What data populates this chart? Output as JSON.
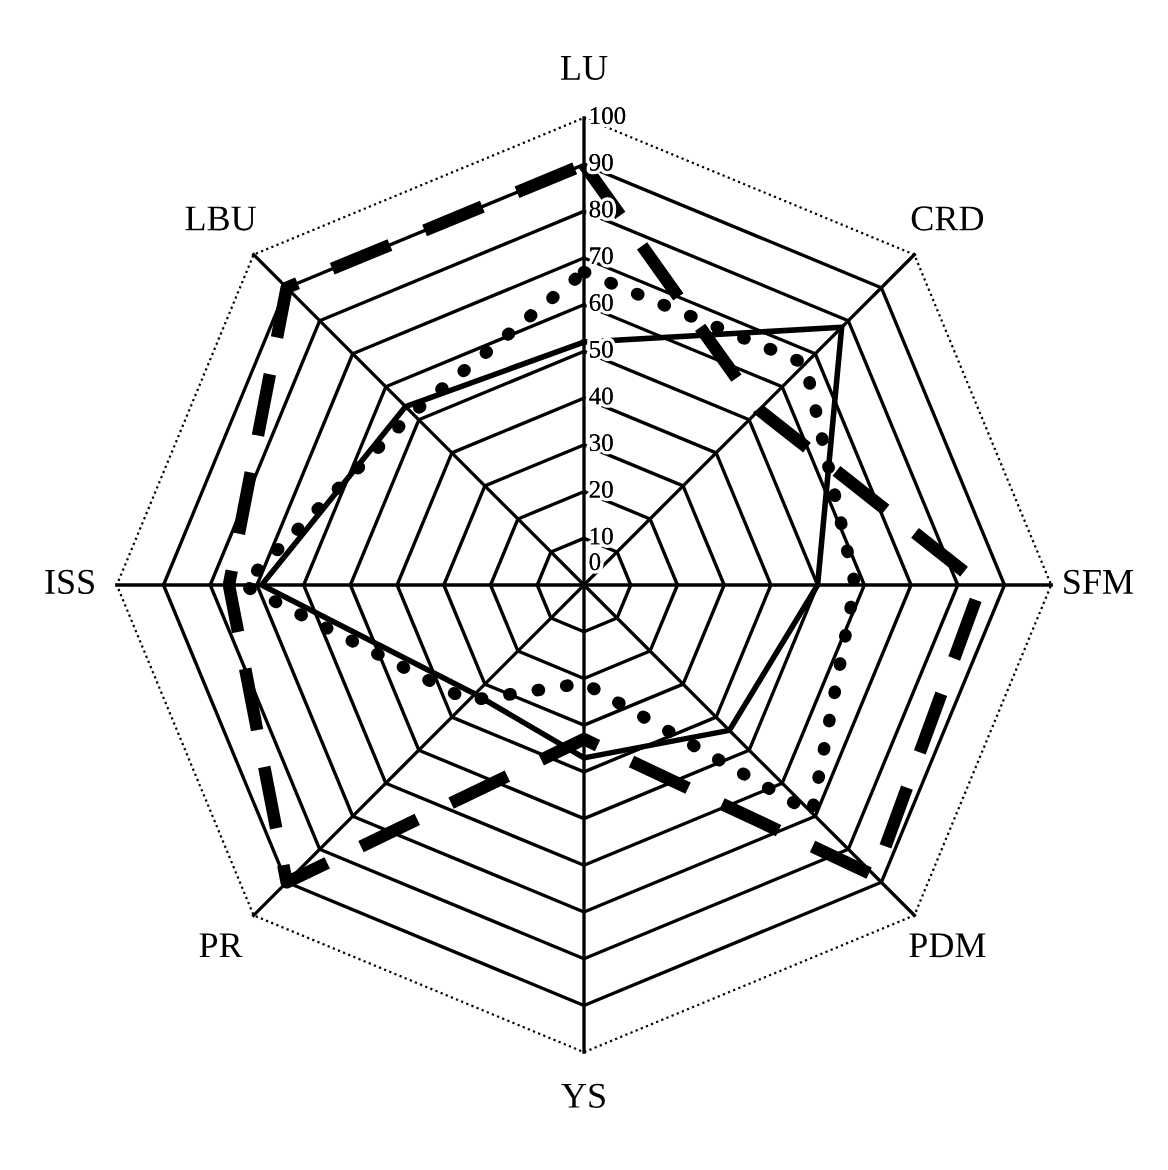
{
  "chart_data": {
    "type": "radar",
    "categories": [
      "LU",
      "CRD",
      "SFM",
      "PDM",
      "YS",
      "PR",
      "ISS",
      "LBU"
    ],
    "ylim": [
      0,
      100
    ],
    "yticks": [
      0,
      10,
      20,
      30,
      40,
      50,
      60,
      70,
      80,
      90,
      100
    ],
    "grid": true,
    "marker": "none",
    "series": [
      {
        "color": "#000000",
        "line_style": "solid",
        "values": [
          52,
          78,
          50,
          44,
          37,
          33,
          69,
          54
        ]
      },
      {
        "color": "#000000",
        "line_style": "dotted",
        "values": [
          67,
          67,
          58,
          69,
          21,
          35,
          73,
          52
        ]
      },
      {
        "color": "#000000",
        "line_style": "dashed",
        "values": [
          90,
          53,
          85,
          88,
          33,
          90,
          76,
          90
        ]
      }
    ]
  }
}
